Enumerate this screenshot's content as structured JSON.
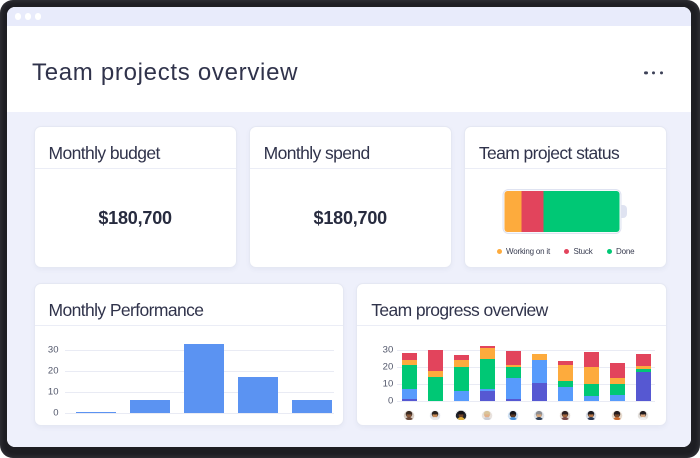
{
  "window": {
    "title": "Team projects overview",
    "controls": "window-dots",
    "menu": "ellipsis-menu"
  },
  "colors": {
    "frame": "#1e1e23",
    "topbar": "#e8ebfb",
    "body_background": "#eff1fb",
    "card_background": "#ffffff",
    "title_text": "#30334b",
    "value_text": "#272b3f",
    "status_orange": "#fdab3d",
    "status_red": "#e2445c",
    "status_green": "#00c875",
    "bar_blue": "#5b93f2",
    "bar_dark_blue": "#5658d2",
    "bar_bright_blue": "#579bfc"
  },
  "cards": {
    "budget": {
      "title": "Monthly budget",
      "value": "$180,700"
    },
    "spend": {
      "title": "Monthly spend",
      "value": "$180,700"
    }
  },
  "chart_data": [
    {
      "type": "pie",
      "widget": "battery",
      "title": "Team project status",
      "labels": [
        "Working on it",
        "Stuck",
        "Done"
      ],
      "values_pct": [
        14.4,
        19.0,
        66.6
      ],
      "colors": [
        "#fdab3d",
        "#e2445c",
        "#00c875"
      ],
      "legend_position": "bottom"
    },
    {
      "type": "bar",
      "title": "Monthly Performance",
      "categories": [
        "",
        "",
        "",
        "",
        ""
      ],
      "values": [
        0.5,
        6,
        33,
        17,
        6
      ],
      "bar_color": "#5b93f2",
      "ylabel": "",
      "xlabel": "",
      "ylim": [
        0,
        35
      ],
      "yticks": [
        0,
        10,
        20,
        30
      ],
      "grid": true,
      "legend_position": "none"
    },
    {
      "type": "stacked-bar",
      "title": "Team progress overview",
      "categories": [
        "person-1",
        "person-2",
        "person-3",
        "person-4",
        "person-5",
        "person-6",
        "person-7",
        "person-8",
        "person-9",
        "person-10"
      ],
      "series": [
        {
          "name": "dark-blue",
          "color": "#5658d2",
          "values": [
            1,
            0,
            0,
            5.5,
            1,
            10.5,
            0,
            0,
            0,
            17
          ]
        },
        {
          "name": "blue",
          "color": "#579bfc",
          "values": [
            5.5,
            0,
            5.5,
            1.5,
            12,
            13.5,
            8,
            2.5,
            3,
            0
          ]
        },
        {
          "name": "green",
          "color": "#00c875",
          "values": [
            14.5,
            14,
            14,
            17.5,
            7,
            0,
            3.5,
            7,
            6.5,
            1.5
          ]
        },
        {
          "name": "orange",
          "color": "#fdab3d",
          "values": [
            3,
            3.5,
            4.5,
            6.5,
            1,
            3.5,
            9.5,
            10.5,
            4,
            2
          ]
        },
        {
          "name": "red",
          "color": "#e2445c",
          "values": [
            4,
            12.5,
            3,
            1,
            8,
            0,
            2.5,
            8.5,
            8.5,
            7
          ]
        }
      ],
      "ylim": [
        0,
        35
      ],
      "yticks": [
        0,
        10,
        20,
        30
      ],
      "grid": true,
      "legend_position": "none",
      "x_axis_avatars": [
        {
          "bg": "#d9cfc6",
          "skin": "#8a5a3b",
          "hair": "#3a2a22",
          "shirt": "#6b4a3a"
        },
        {
          "bg": "#dfe3ea",
          "skin": "#c68955",
          "hair": "#26201c",
          "shirt": "#e8e8ea"
        },
        {
          "bg": "#20242c",
          "skin": "#6d4328",
          "hair": "#141217",
          "shirt": "#e4b23c"
        },
        {
          "bg": "#e8e2de",
          "skin": "#e3b08a",
          "hair": "#d9c49a",
          "shirt": "#c9ccd4"
        },
        {
          "bg": "#cfe0f2",
          "skin": "#5d3a24",
          "hair": "#17151a",
          "shirt": "#4a90d9"
        },
        {
          "bg": "#dfe4ea",
          "skin": "#d9a87c",
          "hair": "#8c8c90",
          "shirt": "#2e3e55"
        },
        {
          "bg": "#e3d8d2",
          "skin": "#a4653c",
          "hair": "#2c2022",
          "shirt": "#7a4a4a"
        },
        {
          "bg": "#d8dde6",
          "skin": "#b87748",
          "hair": "#1c1a20",
          "shirt": "#2a3752"
        },
        {
          "bg": "#e6d9cc",
          "skin": "#7a4a2c",
          "hair": "#241c1e",
          "shirt": "#c96a2e"
        },
        {
          "bg": "#e4e0dc",
          "skin": "#d7a57e",
          "hair": "#201a1e",
          "shirt": "#f0f0f2"
        }
      ]
    }
  ]
}
